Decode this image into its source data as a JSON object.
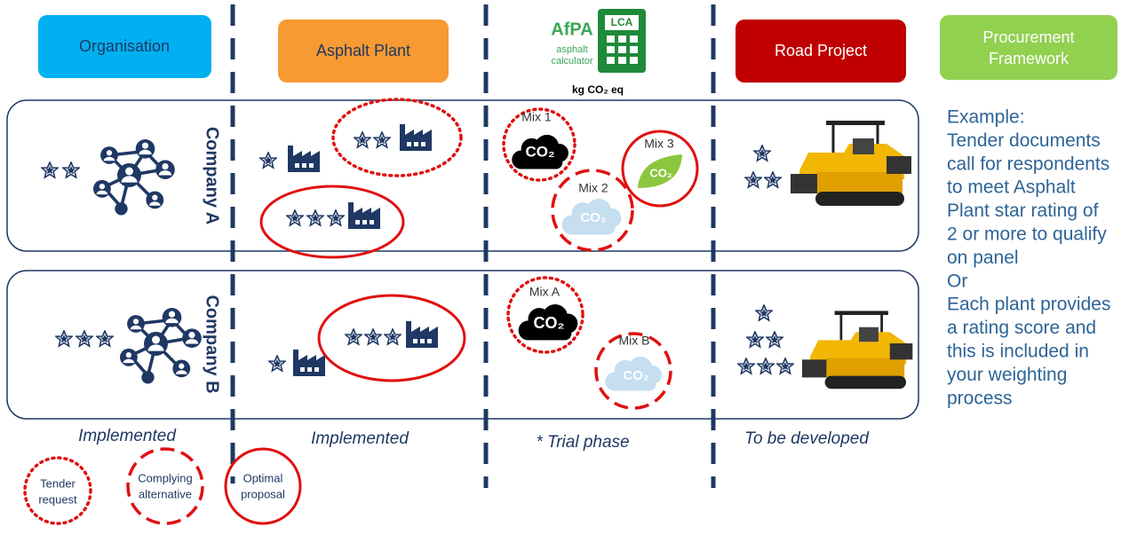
{
  "columns": {
    "organisation": "Organisation",
    "asphalt_plant": "Asphalt Plant",
    "road_project": "Road Project",
    "procurement_framework": [
      "Procurement",
      "Framework"
    ]
  },
  "calculator": {
    "logo": "AfPA",
    "name": [
      "asphalt",
      "calculator"
    ],
    "badge": "LCA",
    "unit": "kg CO₂ eq"
  },
  "companies": [
    "Company A",
    "Company B"
  ],
  "mixes": {
    "company_a": [
      "Mix 1",
      "Mix 2",
      "Mix 3"
    ],
    "company_b": [
      "Mix A",
      "Mix B"
    ]
  },
  "co2": "CO₂",
  "status": [
    "Implemented",
    "Implemented",
    "* Trial phase",
    "To be developed"
  ],
  "legend": [
    [
      "Tender",
      "request"
    ],
    [
      "Complying",
      "alternative"
    ],
    [
      "Optimal",
      "proposal"
    ]
  ],
  "example": [
    "Example:",
    "Tender documents",
    "call for respondents",
    "to meet Asphalt",
    "Plant star rating of",
    "2 or more to qualify",
    "on panel",
    "Or",
    "Each plant provides",
    "a rating score and",
    "this is included in",
    "your weighting",
    "process"
  ]
}
